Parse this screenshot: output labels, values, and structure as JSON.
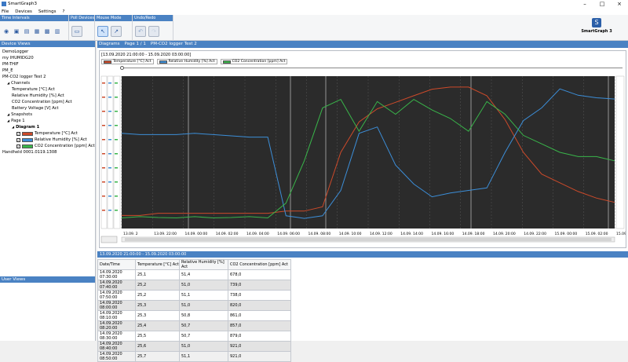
{
  "app": {
    "title": "SmartGraph3",
    "logo_text": "SmartGraph 3"
  },
  "menu": [
    "File",
    "Devices",
    "Settings",
    "?"
  ],
  "ribbon": {
    "groups": [
      "Time Intervals",
      "Poll Devices",
      "Mouse Mode",
      "Undo/Redo"
    ]
  },
  "device_views": {
    "header": "Device Views",
    "tree": [
      {
        "label": "DemoLogger",
        "level": 0
      },
      {
        "label": "my IHUMIDG20",
        "level": 0
      },
      {
        "label": "PM-THIF",
        "level": 0
      },
      {
        "label": "PM_E",
        "level": 0
      },
      {
        "label": "PM-CO2 logger Test 2",
        "level": 0
      },
      {
        "label": "Channels",
        "level": 1
      },
      {
        "label": "Temperature [°C] Act",
        "level": 2
      },
      {
        "label": "Relative Humidity [%] Act",
        "level": 2
      },
      {
        "label": "CO2 Concentration [ppm] Act",
        "level": 2
      },
      {
        "label": "Battery Voltage [V] Act",
        "level": 2
      },
      {
        "label": "Snapshots",
        "level": 1
      },
      {
        "label": "Page 1",
        "level": 1
      },
      {
        "label": "Diagram 1",
        "level": 2
      },
      {
        "label": "Temperature [°C] Act",
        "level": 3,
        "check": true,
        "swatch": "#cc4a2a"
      },
      {
        "label": "Relative Humidity [%] Act",
        "level": 3,
        "check": true,
        "swatch": "#3c8ed8"
      },
      {
        "label": "CO2 Concentration [ppm] Act",
        "level": 3,
        "check": true,
        "swatch": "#39b54a"
      },
      {
        "label": "Handheld 0001.0119.1308",
        "level": 0
      }
    ]
  },
  "user_views": {
    "header": "User Views"
  },
  "diagram": {
    "header_parts": [
      "Diagrams",
      "Page 1 / 1",
      "PM-CO2 logger Test 2"
    ],
    "range": "[13.09.2020 21:00:00 - 15.09.2020 03:00:00]",
    "legend": [
      {
        "label": "Temperature [°C] Act",
        "color": "#cc4a2a"
      },
      {
        "label": "Relative Humidity [%] Act",
        "color": "#3c8ed8"
      },
      {
        "label": "CO2 Concentration [ppm] Act",
        "color": "#39b54a"
      }
    ]
  },
  "chart_data": {
    "type": "line",
    "x_ticks": [
      "13.09. 2",
      "13.09. 22:00",
      "14.09. 00:00",
      "14.09. 02:00",
      "14.09. 04:00",
      "14.09. 06:00",
      "14.09. 08:00",
      "14.09. 10:00",
      "14.09. 12:00",
      "14.09. 14:00",
      "14.09. 16:00",
      "14.09. 18:00",
      "14.09. 20:00",
      "14.09. 22:00",
      "15.09. 00:00",
      "15.09. 02:00",
      "15.09. 0"
    ],
    "grid": true,
    "series": [
      {
        "name": "Temperature [°C] Act",
        "color": "#cc4a2a",
        "values": [
          25.1,
          25.1,
          25.2,
          25.2,
          25.2,
          25.2,
          25.2,
          25.2,
          25.2,
          25.3,
          25.3,
          25.5,
          28.0,
          29.4,
          30.0,
          30.3,
          30.6,
          30.9,
          31.0,
          31.0,
          30.6,
          29.5,
          28.0,
          27.0,
          26.6,
          26.2,
          25.9,
          25.7
        ]
      },
      {
        "name": "Relative Humidity [%] Act",
        "color": "#3c8ed8",
        "values": [
          57.5,
          57.4,
          57.4,
          57.4,
          57.5,
          57.4,
          57.3,
          57.2,
          57.2,
          51.0,
          50.8,
          51.0,
          53.0,
          57.5,
          58.0,
          55.0,
          53.5,
          52.5,
          52.8,
          53.0,
          53.2,
          56.0,
          58.5,
          59.5,
          61.0,
          60.5,
          60.3,
          60.2
        ]
      },
      {
        "name": "CO2 Concentration [ppm] Act",
        "color": "#39b54a",
        "values": [
          625,
          628,
          626,
          625,
          628,
          625,
          626,
          628,
          625,
          660,
          760,
          885,
          905,
          830,
          900,
          870,
          905,
          880,
          860,
          830,
          900,
          870,
          820,
          800,
          780,
          770,
          770,
          760
        ]
      }
    ]
  },
  "table": {
    "header": "13.09.2020 21:00:00 - 15.09.2020 03:00:00",
    "columns": [
      "Date/Time",
      "Temperature [°C] Act",
      "Relative Humidity [%] Act",
      "CO2 Concentration [ppm] Act"
    ],
    "rows": [
      [
        "14.09.2020 07:30:00",
        "25,1",
        "51,4",
        "678,0"
      ],
      [
        "14.09.2020 07:40:00",
        "25,2",
        "51,0",
        "739,0"
      ],
      [
        "14.09.2020 07:50:00",
        "25,2",
        "51,1",
        "738,0"
      ],
      [
        "14.09.2020 08:00:00",
        "25,3",
        "51,0",
        "820,0"
      ],
      [
        "14.09.2020 08:10:00",
        "25,3",
        "50,8",
        "861,0"
      ],
      [
        "14.09.2020 08:20:00",
        "25,4",
        "50,7",
        "857,0"
      ],
      [
        "14.09.2020 08:30:00",
        "25,5",
        "50,7",
        "879,0"
      ],
      [
        "14.09.2020 08:40:00",
        "25,6",
        "51,0",
        "921,0"
      ],
      [
        "14.09.2020 08:50:00",
        "25,7",
        "51,1",
        "921,0"
      ]
    ]
  }
}
